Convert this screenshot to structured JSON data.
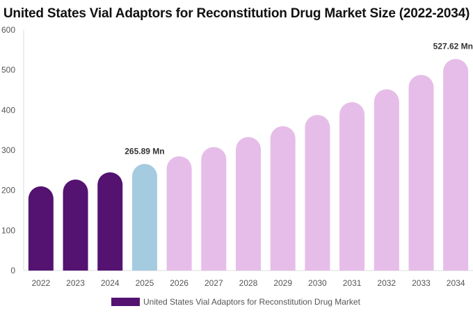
{
  "chart_data": {
    "type": "bar",
    "title": "United States Vial Adaptors for Reconstitution Drug Market Size (2022-2034)",
    "categories": [
      "2022",
      "2023",
      "2024",
      "2025",
      "2026",
      "2027",
      "2028",
      "2029",
      "2030",
      "2031",
      "2032",
      "2033",
      "2034"
    ],
    "series": [
      {
        "name": "United States Vial Adaptors for Reconstitution Drug Market",
        "values": [
          210,
          227,
          245,
          265.89,
          285,
          308,
          333,
          360,
          388,
          420,
          452,
          488,
          527.62
        ]
      }
    ],
    "ylim": [
      0,
      600
    ],
    "yticks": [
      0,
      100,
      200,
      300,
      400,
      500,
      600
    ],
    "data_labels": [
      {
        "index": 3,
        "text": "265.89 Mn"
      },
      {
        "index": 12,
        "text": "527.62 Mn"
      }
    ],
    "colors": {
      "historical": "#541271",
      "base_year": "#a5cbe0",
      "forecast": "#e6bde8",
      "legend": "#541271"
    },
    "bar_color_groups": [
      "historical",
      "historical",
      "historical",
      "base_year",
      "forecast",
      "forecast",
      "forecast",
      "forecast",
      "forecast",
      "forecast",
      "forecast",
      "forecast",
      "forecast"
    ],
    "legend_position": "bottom-center",
    "grid": false
  }
}
